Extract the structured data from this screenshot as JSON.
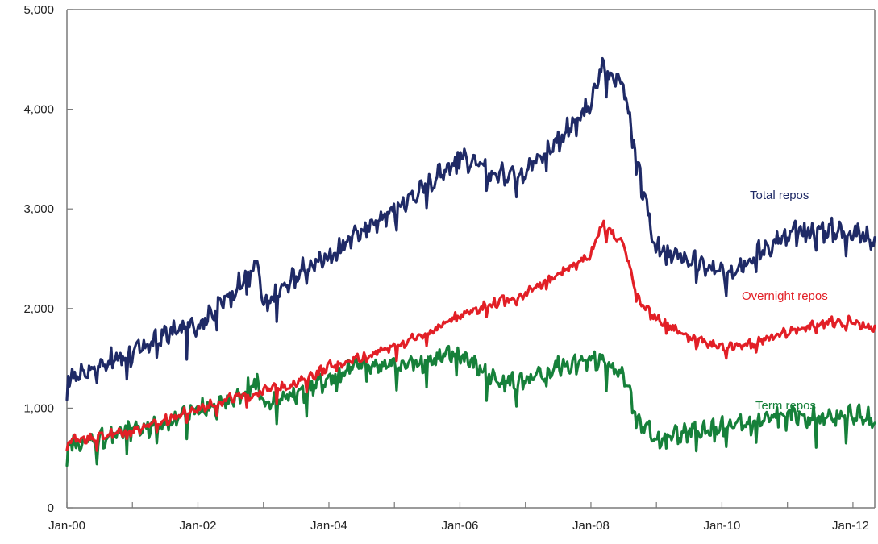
{
  "chart_data": {
    "type": "line",
    "title": "",
    "xlabel": "",
    "ylabel": "",
    "ylim": [
      0,
      5000
    ],
    "xlim": [
      "2000-01",
      "2012-05"
    ],
    "x_tick_labels": [
      "Jan-00",
      "Jan-02",
      "Jan-04",
      "Jan-06",
      "Jan-08",
      "Jan-10",
      "Jan-12"
    ],
    "y_tick_labels": [
      "0",
      "1,000",
      "2,000",
      "3,000",
      "4,000",
      "5,000"
    ],
    "grid": false,
    "legend": "inline labels next to series",
    "x": [
      "2000-01",
      "2000-07",
      "2001-01",
      "2001-07",
      "2002-01",
      "2002-07",
      "2002-12",
      "2003-01",
      "2003-07",
      "2004-01",
      "2004-07",
      "2005-01",
      "2005-07",
      "2006-01",
      "2006-07",
      "2007-01",
      "2007-07",
      "2008-01",
      "2008-03",
      "2008-07",
      "2008-10",
      "2009-01",
      "2009-07",
      "2010-01",
      "2010-07",
      "2011-01",
      "2011-07",
      "2012-01",
      "2012-05"
    ],
    "series": [
      {
        "name": "Total repos",
        "color": "#1f2a66",
        "values": [
          1300,
          1450,
          1550,
          1750,
          1850,
          2150,
          2450,
          2000,
          2350,
          2550,
          2800,
          3000,
          3250,
          3550,
          3350,
          3400,
          3700,
          4050,
          4450,
          4250,
          3300,
          2600,
          2500,
          2350,
          2550,
          2750,
          2800,
          2780,
          2700
        ]
      },
      {
        "name": "Overnight repos",
        "color": "#e21f26",
        "values": [
          680,
          720,
          780,
          880,
          1000,
          1100,
          1150,
          1180,
          1250,
          1420,
          1520,
          1620,
          1750,
          1950,
          2050,
          2150,
          2350,
          2550,
          2850,
          2650,
          2050,
          1900,
          1720,
          1600,
          1650,
          1780,
          1850,
          1880,
          1800
        ]
      },
      {
        "name": "Term repos",
        "color": "#16803a",
        "values": [
          620,
          700,
          780,
          870,
          980,
          1080,
          1250,
          1050,
          1150,
          1300,
          1450,
          1430,
          1480,
          1550,
          1300,
          1250,
          1420,
          1500,
          1500,
          1350,
          850,
          700,
          760,
          800,
          850,
          950,
          900,
          930,
          900
        ]
      }
    ]
  }
}
